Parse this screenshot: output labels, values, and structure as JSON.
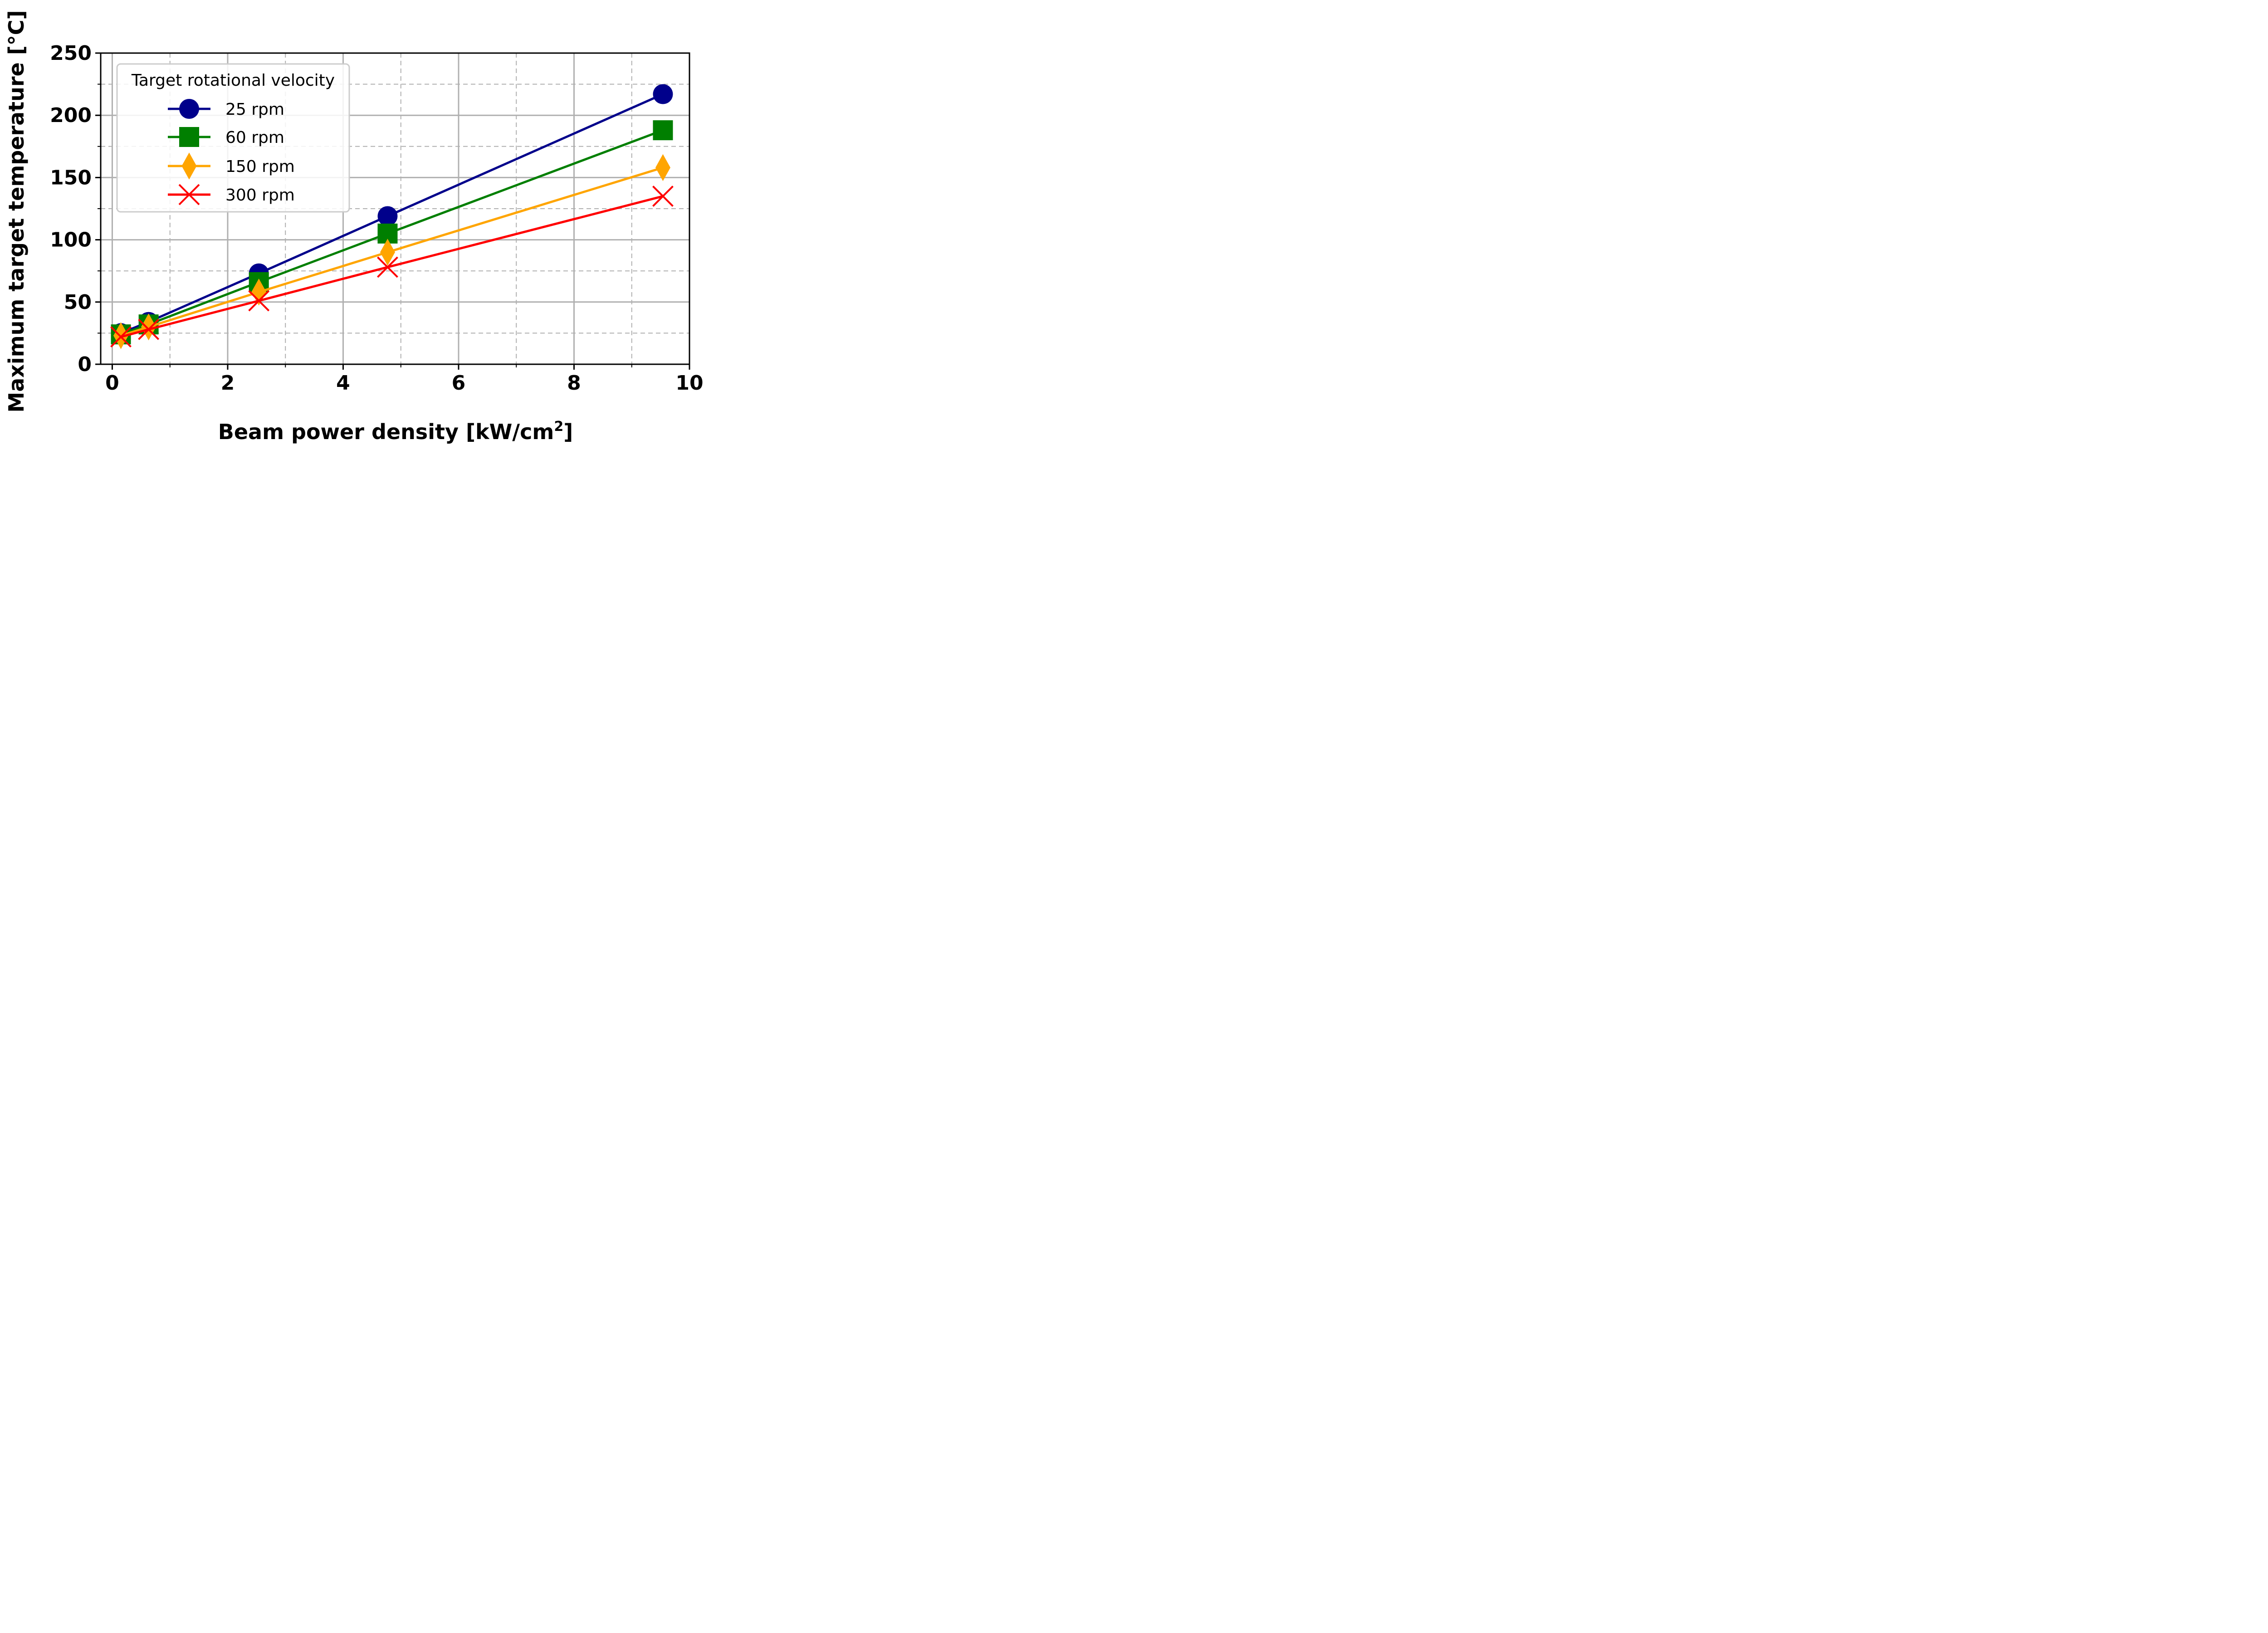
{
  "chart_data": {
    "type": "line",
    "xlabel": "Beam power density [kW/cm",
    "xlabel_sup": "2",
    "xlabel_end": "]",
    "ylabel": "Maximum target temperature [°C]",
    "xlim": [
      -0.2,
      10
    ],
    "ylim": [
      0,
      250
    ],
    "x_ticks": [
      0,
      2,
      4,
      6,
      8,
      10
    ],
    "x_tick_labels": [
      "0",
      "2",
      "4",
      "6",
      "8",
      "10"
    ],
    "x_minor_ticks": [
      1,
      3,
      5,
      7,
      9
    ],
    "y_ticks": [
      0,
      50,
      100,
      150,
      200,
      250
    ],
    "y_tick_labels": [
      "0",
      "50",
      "100",
      "150",
      "200",
      "250"
    ],
    "y_minor_ticks": [
      25,
      75,
      125,
      175,
      225
    ],
    "grid": true,
    "legend": {
      "title": "Target rotational velocity",
      "position": "top-left"
    },
    "x": [
      0.15,
      0.63,
      2.54,
      4.77,
      9.54
    ],
    "series": [
      {
        "name": "25 rpm",
        "color": "#00008b",
        "marker": "circle",
        "values": [
          25,
          34,
          73,
          119,
          217
        ]
      },
      {
        "name": "60 rpm",
        "color": "#007f00",
        "marker": "square",
        "values": [
          24,
          32,
          66,
          105,
          188
        ]
      },
      {
        "name": "150 rpm",
        "color": "#ffa500",
        "marker": "diamond",
        "values": [
          23,
          30,
          58,
          90,
          158
        ]
      },
      {
        "name": "300 rpm",
        "color": "#ff0000",
        "marker": "x",
        "values": [
          22,
          28,
          51,
          78,
          135
        ]
      }
    ]
  }
}
